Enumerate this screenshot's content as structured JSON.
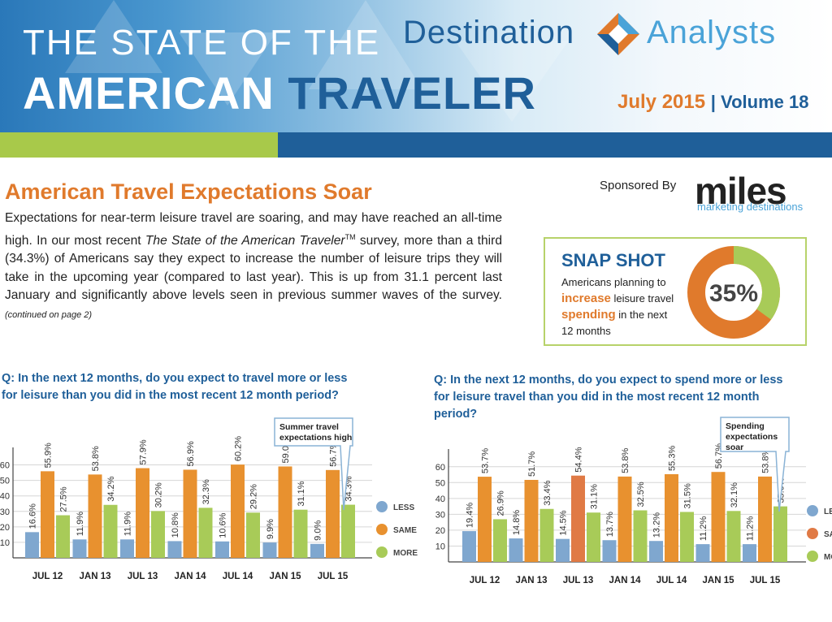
{
  "header": {
    "title_line1": "THE STATE OF THE",
    "title_line2_a": "AMERICAN",
    "title_line2_b": "TRAVELER",
    "brand_a": "Destination",
    "brand_b": "Analysts",
    "date": "July 2015",
    "volume": "| Volume 18"
  },
  "article": {
    "headline": "American Travel Expectations Soar",
    "p1": "Expectations for near-term leisure travel are soaring, and may have reached an all-time high. In our most recent ",
    "p_italic": "The State of the American Traveler",
    "p_tm": "TM",
    "p2": " survey, more than a third (34.3%) of Americans say they expect to increase the number of leisure trips they will take in the upcoming year (compared to last year).   This is up from 31.1 percent last January and significantly above levels seen in previous summer waves of the survey.",
    "continued": "(continued on page 2)"
  },
  "sponsor": {
    "label": "Sponsored By",
    "logo": "miles",
    "logo_sub": "marketing destinations"
  },
  "snapshot": {
    "title": "SNAP SHOT",
    "text1": "Americans planning to ",
    "highlight1": "increase",
    "text2": " leisure travel ",
    "highlight2": "spending",
    "text3": " in the next 12 months",
    "value_label": "35%",
    "value": 35
  },
  "colors": {
    "less": "#7fa7cf",
    "same": "#e8912f",
    "more": "#a8cb58",
    "highlight_same": "#e07a45",
    "blue": "#1f5f99",
    "orange": "#e07a2c"
  },
  "chart_data": [
    {
      "type": "bar",
      "question": "Q:  In the next 12 months, do you expect to travel more or less for leisure than you did in the most recent 12 month period?",
      "categories": [
        "JUL 12",
        "JAN 13",
        "JUL 13",
        "JAN 14",
        "JUL 14",
        "JAN 15",
        "JUL 15"
      ],
      "series": [
        {
          "name": "LESS",
          "values": [
            16.6,
            11.9,
            11.9,
            10.8,
            10.6,
            9.9,
            9.0
          ],
          "labels": [
            "16.6%",
            "11.9%",
            "11.9%",
            "10.8%",
            "10.6%",
            "9.9%",
            "9.0%"
          ]
        },
        {
          "name": "SAME",
          "values": [
            55.9,
            53.8,
            57.9,
            56.9,
            60.2,
            59.0,
            56.7
          ],
          "labels": [
            "55.9%",
            "53.8%",
            "57.9%",
            "56.9%",
            "60.2%",
            "59.0%",
            "56.7%"
          ]
        },
        {
          "name": "MORE",
          "values": [
            27.5,
            34.2,
            30.2,
            32.3,
            29.2,
            31.1,
            34.3
          ],
          "labels": [
            "27.5%",
            "34.2%",
            "30.2%",
            "32.3%",
            "29.2%",
            "31.1%",
            "34.3%"
          ]
        }
      ],
      "yticks": [
        "10",
        "20",
        "30",
        "40",
        "50",
        "60"
      ],
      "ylim": [
        0,
        65
      ],
      "callout": "Summer travel expectations high",
      "legend": "right"
    },
    {
      "type": "bar",
      "question": "Q: In the next 12 months, do you expect to spend more or less for leisure travel than you did in the most recent 12 month period?",
      "categories": [
        "JUL 12",
        "JAN 13",
        "JUL 13",
        "JAN 14",
        "JUL 14",
        "JAN 15",
        "JUL 15"
      ],
      "series": [
        {
          "name": "LESS",
          "values": [
            19.4,
            14.8,
            14.5,
            13.7,
            13.2,
            11.2,
            11.2
          ],
          "labels": [
            "19.4%",
            "14.8%",
            "14.5%",
            "13.7%",
            "13.2%",
            "11.2%",
            "11.2%"
          ]
        },
        {
          "name": "SAME",
          "values": [
            53.7,
            51.7,
            54.4,
            53.8,
            55.3,
            56.7,
            53.8
          ],
          "labels": [
            "53.7%",
            "51.7%",
            "54.4%",
            "53.8%",
            "55.3%",
            "56.7%",
            "53.8%"
          ]
        },
        {
          "name": "MORE",
          "values": [
            26.9,
            33.4,
            31.1,
            32.5,
            31.5,
            32.1,
            35.0
          ],
          "labels": [
            "26.9%",
            "33.4%",
            "31.1%",
            "32.5%",
            "31.5%",
            "32.1%",
            "35.0%"
          ]
        }
      ],
      "yticks": [
        "10",
        "20",
        "30",
        "40",
        "50",
        "60"
      ],
      "ylim": [
        0,
        65
      ],
      "callout": "Spending expectations soar",
      "legend": "right",
      "legend_visible_labels": [
        "LES",
        "SAI",
        "MO"
      ]
    }
  ]
}
